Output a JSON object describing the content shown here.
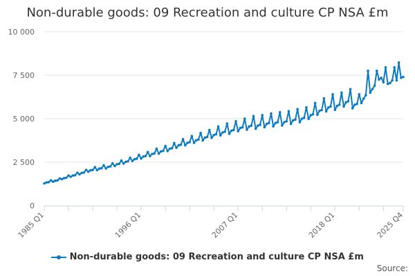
{
  "chart_data": {
    "type": "line",
    "title": "Non-durable goods: 09 Recreation and culture CP NSA £m",
    "xlabel": "",
    "ylabel": "",
    "ylim": [
      0,
      10000
    ],
    "yticks": [
      0,
      2500,
      5000,
      7500,
      10000
    ],
    "ytick_labels": [
      "0",
      "2 500",
      "5 000",
      "7 500",
      "10 000"
    ],
    "xtick_labels": [
      "1985 Q1",
      "1996 Q1",
      "2007 Q1",
      "2018 Q1",
      "2025 Q4"
    ],
    "grid": "horizontal",
    "legend_placement": "bottom",
    "color": "#0b7bc1",
    "start": "1985 Q1",
    "end": "2025 Q4",
    "series": [
      {
        "name": "Non-durable goods: 09 Recreation and culture CP NSA £m",
        "values": [
          1280,
          1330,
          1350,
          1450,
          1380,
          1430,
          1450,
          1560,
          1520,
          1580,
          1600,
          1730,
          1660,
          1730,
          1750,
          1890,
          1800,
          1880,
          1900,
          2050,
          1950,
          2030,
          2050,
          2210,
          2040,
          2130,
          2150,
          2320,
          2140,
          2230,
          2250,
          2430,
          2280,
          2380,
          2400,
          2590,
          2420,
          2520,
          2550,
          2750,
          2570,
          2670,
          2700,
          2920,
          2710,
          2820,
          2850,
          3080,
          2850,
          2970,
          3000,
          3270,
          2990,
          3120,
          3150,
          3430,
          3140,
          3270,
          3300,
          3600,
          3330,
          3470,
          3500,
          3820,
          3470,
          3610,
          3650,
          4000,
          3610,
          3760,
          3800,
          4180,
          3750,
          3910,
          3950,
          4350,
          3900,
          4060,
          4100,
          4550,
          4040,
          4210,
          4250,
          4720,
          4130,
          4310,
          4350,
          4850,
          4280,
          4460,
          4500,
          5000,
          4370,
          4550,
          4600,
          5150,
          4420,
          4600,
          4650,
          5200,
          4510,
          4700,
          4750,
          5300,
          4560,
          4750,
          4800,
          5370,
          4610,
          4800,
          4850,
          5430,
          4700,
          4900,
          4950,
          5550,
          4800,
          5000,
          5050,
          5650,
          4990,
          5200,
          5250,
          5900,
          5230,
          5450,
          5500,
          6170,
          5420,
          5640,
          5700,
          6400,
          5510,
          5740,
          5800,
          6500,
          5700,
          5940,
          6000,
          6700,
          5600,
          5800,
          5850,
          6400,
          5900,
          6150,
          6350,
          7750,
          6500,
          6700,
          6900,
          7750,
          7250,
          7350,
          7100,
          7950,
          7000,
          7050,
          7200,
          7950,
          7200,
          8230,
          7350,
          7400
        ]
      }
    ]
  },
  "source_label": "Source:"
}
